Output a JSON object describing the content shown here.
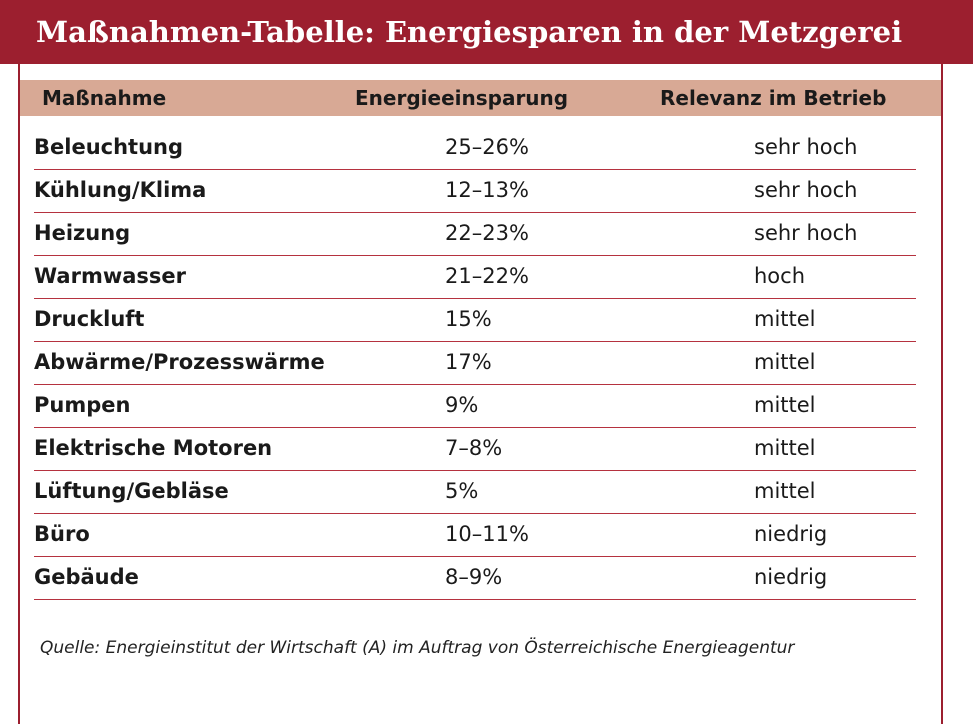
{
  "header": {
    "title": "Maßnahmen-Tabelle: Energiesparen in der Metzgerei"
  },
  "table": {
    "columns": [
      "Maßnahme",
      "Energieeinsparung",
      "Relevanz im Betrieb"
    ],
    "rows": [
      [
        "Beleuchtung",
        "25–26%",
        "sehr hoch"
      ],
      [
        "Kühlung/Klima",
        "12–13%",
        "sehr hoch"
      ],
      [
        "Heizung",
        "22–23%",
        "sehr hoch"
      ],
      [
        "Warmwasser",
        "21–22%",
        "hoch"
      ],
      [
        "Druckluft",
        "15%",
        "mittel"
      ],
      [
        "Abwärme/Prozesswärme",
        "17%",
        "mittel"
      ],
      [
        "Pumpen",
        "9%",
        "mittel"
      ],
      [
        "Elektrische Motoren",
        "7–8%",
        "mittel"
      ],
      [
        "Lüftung/Gebläse",
        "5%",
        "mittel"
      ],
      [
        "Büro",
        "10–11%",
        "niedrig"
      ],
      [
        "Gebäude",
        "8–9%",
        "niedrig"
      ]
    ]
  },
  "source": "Quelle: Energieinstitut der Wirtschaft (A) im Auftrag von Österreichische Energieagentur"
}
